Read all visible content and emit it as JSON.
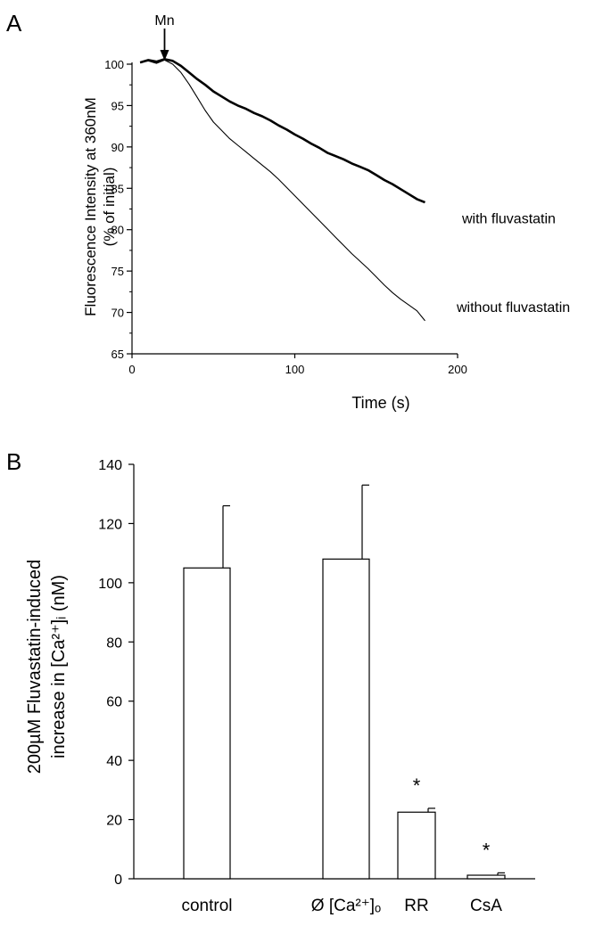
{
  "chart_data": [
    {
      "panel": "A",
      "type": "line",
      "ylabel_lines": [
        "Fluorescence Intensity at 360nM",
        "(% of initial)"
      ],
      "xlabel": "Time (s)",
      "xlim": [
        0,
        200
      ],
      "ylim": [
        65,
        100
      ],
      "x_ticks": [
        0,
        100,
        200
      ],
      "y_ticks": [
        65,
        70,
        75,
        80,
        85,
        90,
        95,
        100
      ],
      "annotation": "Mn",
      "annotation_x": 20,
      "series": [
        {
          "name": "with fluvastatin",
          "line_width": 2.6,
          "x": [
            5,
            10,
            15,
            20,
            25,
            30,
            35,
            40,
            45,
            50,
            55,
            60,
            65,
            70,
            75,
            80,
            85,
            90,
            95,
            100,
            105,
            110,
            115,
            120,
            125,
            130,
            135,
            140,
            145,
            150,
            155,
            160,
            165,
            170,
            175,
            180
          ],
          "y": [
            100.2,
            100.5,
            100.3,
            100.6,
            100.4,
            99.8,
            99.0,
            98.2,
            97.5,
            96.7,
            96.1,
            95.5,
            95.0,
            94.6,
            94.1,
            93.7,
            93.2,
            92.6,
            92.1,
            91.5,
            91.0,
            90.4,
            89.9,
            89.3,
            88.9,
            88.5,
            88.0,
            87.6,
            87.2,
            86.6,
            86.0,
            85.5,
            84.9,
            84.3,
            83.7,
            83.3
          ]
        },
        {
          "name": "without fluvastatin",
          "line_width": 1.1,
          "x": [
            5,
            10,
            15,
            20,
            25,
            30,
            35,
            40,
            45,
            50,
            55,
            60,
            65,
            70,
            75,
            80,
            85,
            90,
            95,
            100,
            105,
            110,
            115,
            120,
            125,
            130,
            135,
            140,
            145,
            150,
            155,
            160,
            165,
            170,
            175,
            180
          ],
          "y": [
            100.2,
            100.4,
            100.1,
            100.5,
            100.0,
            99.0,
            97.6,
            96.0,
            94.4,
            93.0,
            92.0,
            91.0,
            90.2,
            89.4,
            88.6,
            87.8,
            87.0,
            86.1,
            85.1,
            84.1,
            83.1,
            82.1,
            81.1,
            80.1,
            79.1,
            78.1,
            77.1,
            76.2,
            75.3,
            74.3,
            73.3,
            72.4,
            71.6,
            70.9,
            70.2,
            69.0
          ]
        }
      ]
    },
    {
      "panel": "B",
      "type": "bar",
      "ylabel_lines": [
        "200µM Fluvastatin-induced",
        "increase in [Ca²⁺]ᵢ (nM)"
      ],
      "ylim": [
        0,
        140
      ],
      "y_ticks": [
        0,
        20,
        40,
        60,
        80,
        100,
        120,
        140
      ],
      "categories": [
        "control",
        "Ø [Ca²⁺]ₒ",
        "RR",
        "CsA"
      ],
      "values": [
        105,
        108,
        22.5,
        1.2
      ],
      "errors": [
        21,
        25,
        1.3,
        0.8
      ],
      "significance": [
        "",
        "",
        "*",
        "*"
      ]
    }
  ],
  "panel_labels": [
    "A",
    "B"
  ]
}
